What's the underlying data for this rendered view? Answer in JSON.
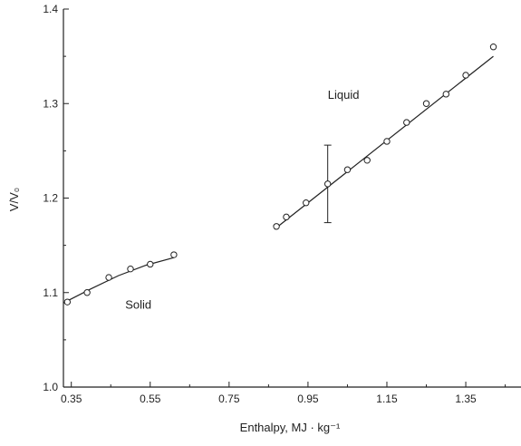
{
  "chart_data": {
    "type": "scatter",
    "xlabel": "Enthalpy, MJ · kg⁻¹",
    "ylabel": "V/V₀",
    "xlim": [
      0.33,
      1.49
    ],
    "ylim": [
      1.0,
      1.4
    ],
    "x_ticks": [
      0.35,
      0.55,
      0.75,
      0.95,
      1.15,
      1.35
    ],
    "x_tick_labels": [
      "0.35",
      "0.55",
      "0.75",
      "0.95",
      "1.15",
      "1.35"
    ],
    "y_ticks": [
      1.0,
      1.1,
      1.2,
      1.3,
      1.4
    ],
    "y_tick_labels": [
      "1.0",
      "1.1",
      "1.2",
      "1.3",
      "1.4"
    ],
    "grid": false,
    "annotations": [
      {
        "text": "Liquid",
        "x": 1.04,
        "y": 1.305
      },
      {
        "text": "Solid",
        "x": 0.52,
        "y": 1.083
      }
    ],
    "series": [
      {
        "points": [
          {
            "x": 0.34,
            "y": 1.09
          },
          {
            "x": 0.39,
            "y": 1.1
          },
          {
            "x": 0.445,
            "y": 1.116
          },
          {
            "x": 0.5,
            "y": 1.125
          },
          {
            "x": 0.55,
            "y": 1.13
          },
          {
            "x": 0.61,
            "y": 1.14
          }
        ],
        "fit": [
          {
            "x": 0.33,
            "y": 1.089
          },
          {
            "x": 0.4,
            "y": 1.104
          },
          {
            "x": 0.47,
            "y": 1.118
          },
          {
            "x": 0.54,
            "y": 1.129
          },
          {
            "x": 0.61,
            "y": 1.137
          }
        ]
      },
      {
        "points": [
          {
            "x": 0.87,
            "y": 1.17
          },
          {
            "x": 0.895,
            "y": 1.18
          },
          {
            "x": 0.945,
            "y": 1.195
          },
          {
            "x": 1.0,
            "y": 1.215
          },
          {
            "x": 1.05,
            "y": 1.23
          },
          {
            "x": 1.1,
            "y": 1.24
          },
          {
            "x": 1.15,
            "y": 1.26
          },
          {
            "x": 1.2,
            "y": 1.28
          },
          {
            "x": 1.25,
            "y": 1.3
          },
          {
            "x": 1.3,
            "y": 1.31
          },
          {
            "x": 1.35,
            "y": 1.33
          },
          {
            "x": 1.42,
            "y": 1.36
          }
        ],
        "fit": [
          {
            "x": 0.865,
            "y": 1.167
          },
          {
            "x": 1.42,
            "y": 1.35
          }
        ],
        "error_bar": {
          "x": 1.0,
          "y_low": 1.174,
          "y_high": 1.256
        }
      }
    ]
  }
}
